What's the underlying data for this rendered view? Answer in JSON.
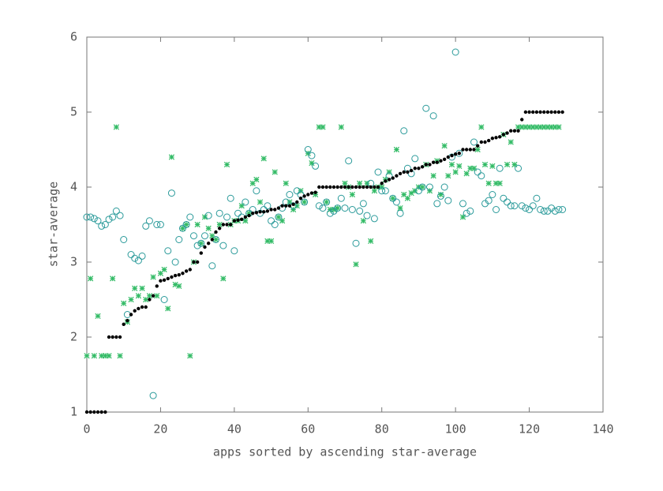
{
  "chart_data": {
    "type": "scatter",
    "xlabel": "apps sorted by ascending star-average",
    "ylabel": "star-average",
    "xlim": [
      0,
      140
    ],
    "xticks": [
      0,
      20,
      40,
      60,
      80,
      100,
      120,
      140
    ],
    "ylim": [
      1,
      6
    ],
    "yticks": [
      1,
      2,
      3,
      4,
      5,
      6
    ],
    "x": [
      0,
      1,
      2,
      3,
      4,
      5,
      6,
      7,
      8,
      9,
      10,
      11,
      12,
      13,
      14,
      15,
      16,
      17,
      18,
      19,
      20,
      21,
      22,
      23,
      24,
      25,
      26,
      27,
      28,
      29,
      30,
      31,
      32,
      33,
      34,
      35,
      36,
      37,
      38,
      39,
      40,
      41,
      42,
      43,
      44,
      45,
      46,
      47,
      48,
      49,
      50,
      51,
      52,
      53,
      54,
      55,
      56,
      57,
      58,
      59,
      60,
      61,
      62,
      63,
      64,
      65,
      66,
      67,
      68,
      69,
      70,
      71,
      72,
      73,
      74,
      75,
      76,
      77,
      78,
      79,
      80,
      81,
      82,
      83,
      84,
      85,
      86,
      87,
      88,
      89,
      90,
      91,
      92,
      93,
      94,
      95,
      96,
      97,
      98,
      99,
      100,
      101,
      102,
      103,
      104,
      105,
      106,
      107,
      108,
      109,
      110,
      111,
      112,
      113,
      114,
      115,
      116,
      117,
      118,
      119,
      120,
      121,
      122,
      123,
      124,
      125,
      126,
      127,
      128,
      129
    ],
    "series": [
      {
        "color": "#33bb66",
        "marker": "asterisk",
        "values": [
          1.75,
          2.78,
          1.75,
          2.28,
          1.75,
          1.75,
          1.75,
          2.78,
          4.8,
          1.75,
          2.45,
          2.2,
          2.5,
          2.65,
          2.55,
          2.65,
          2.5,
          2.55,
          2.8,
          2.55,
          2.85,
          2.9,
          2.38,
          4.4,
          2.7,
          2.68,
          3.45,
          3.5,
          1.75,
          3.0,
          3.5,
          3.25,
          3.6,
          3.45,
          3.35,
          3.3,
          3.5,
          2.78,
          4.3,
          3.5,
          3.55,
          3.55,
          3.75,
          3.55,
          3.65,
          4.05,
          4.1,
          3.8,
          4.38,
          3.28,
          3.28,
          4.2,
          3.6,
          3.55,
          4.05,
          3.8,
          3.7,
          3.75,
          3.95,
          3.8,
          4.45,
          4.32,
          3.9,
          4.8,
          4.8,
          3.8,
          3.7,
          3.7,
          3.72,
          4.8,
          4.05,
          4.0,
          3.9,
          2.97,
          4.05,
          3.55,
          4.05,
          3.28,
          3.95,
          4.0,
          4.0,
          4.1,
          4.2,
          3.85,
          4.5,
          3.72,
          3.9,
          3.85,
          3.92,
          3.95,
          4.0,
          4.0,
          4.3,
          3.95,
          4.15,
          4.35,
          3.9,
          4.55,
          4.15,
          4.3,
          4.2,
          4.28,
          3.6,
          4.18,
          4.25,
          4.25,
          4.5,
          4.8,
          4.3,
          4.05,
          4.28,
          4.05,
          4.05,
          4.7,
          4.3,
          4.6,
          4.3,
          4.8,
          4.8,
          4.8,
          4.8,
          4.8,
          4.8,
          4.8,
          4.8,
          4.8,
          4.8,
          4.8,
          4.8
        ]
      },
      {
        "color": "#2a9a9a",
        "marker": "circle",
        "values": [
          3.6,
          3.6,
          3.58,
          3.55,
          3.48,
          3.5,
          3.57,
          3.6,
          3.68,
          3.62,
          3.3,
          2.3,
          3.1,
          3.05,
          3.02,
          3.08,
          3.48,
          3.55,
          1.22,
          3.5,
          3.5,
          2.5,
          3.15,
          3.92,
          3.0,
          3.3,
          3.45,
          3.5,
          3.6,
          3.35,
          3.22,
          3.25,
          3.35,
          3.62,
          2.95,
          3.3,
          3.65,
          3.22,
          3.6,
          3.85,
          3.15,
          3.65,
          3.6,
          3.8,
          3.65,
          3.7,
          3.95,
          3.65,
          3.7,
          3.75,
          3.55,
          3.5,
          3.6,
          3.72,
          3.8,
          3.9,
          3.75,
          3.95,
          3.9,
          3.8,
          4.5,
          4.42,
          4.28,
          3.75,
          3.72,
          3.8,
          3.65,
          3.68,
          3.72,
          3.85,
          3.72,
          4.35,
          3.7,
          3.25,
          3.68,
          3.78,
          3.62,
          4.05,
          3.58,
          4.2,
          3.95,
          3.95,
          4.15,
          3.85,
          3.8,
          3.65,
          4.75,
          4.25,
          4.18,
          4.38,
          3.95,
          4.0,
          5.05,
          4.0,
          4.95,
          3.78,
          3.88,
          4.0,
          3.82,
          4.4,
          5.8,
          4.45,
          3.78,
          3.65,
          3.68,
          4.6,
          4.2,
          4.15,
          3.78,
          3.82,
          3.9,
          3.7,
          4.25,
          3.85,
          3.8,
          3.75,
          3.75,
          4.25,
          3.75,
          3.72,
          3.7,
          3.75,
          3.85,
          3.7,
          3.68,
          3.68,
          3.72,
          3.68,
          3.7,
          3.7
        ]
      },
      {
        "color": "#000000",
        "marker": "dot",
        "values": [
          1,
          1,
          1,
          1,
          1,
          1,
          2,
          2,
          2,
          2,
          2.17,
          2.22,
          2.3,
          2.35,
          2.38,
          2.4,
          2.4,
          2.5,
          2.55,
          2.68,
          2.75,
          2.76,
          2.78,
          2.8,
          2.82,
          2.83,
          2.85,
          2.88,
          2.9,
          3,
          3,
          3.12,
          3.2,
          3.25,
          3.3,
          3.4,
          3.45,
          3.5,
          3.5,
          3.5,
          3.55,
          3.56,
          3.57,
          3.6,
          3.62,
          3.65,
          3.66,
          3.67,
          3.67,
          3.68,
          3.7,
          3.7,
          3.72,
          3.75,
          3.75,
          3.75,
          3.77,
          3.8,
          3.85,
          3.88,
          3.9,
          3.92,
          3.93,
          4,
          4,
          4,
          4,
          4,
          4,
          4,
          4,
          4,
          4,
          4,
          4,
          4,
          4,
          4,
          4,
          4,
          4.05,
          4.08,
          4.1,
          4.12,
          4.15,
          4.18,
          4.2,
          4.2,
          4.22,
          4.25,
          4.25,
          4.27,
          4.3,
          4.3,
          4.33,
          4.33,
          4.35,
          4.37,
          4.4,
          4.42,
          4.44,
          4.45,
          4.5,
          4.5,
          4.5,
          4.5,
          4.55,
          4.6,
          4.6,
          4.62,
          4.65,
          4.66,
          4.67,
          4.7,
          4.72,
          4.75,
          4.75,
          4.75,
          4.9,
          5,
          5,
          5,
          5,
          5,
          5,
          5,
          5,
          5,
          5,
          5
        ]
      }
    ]
  }
}
